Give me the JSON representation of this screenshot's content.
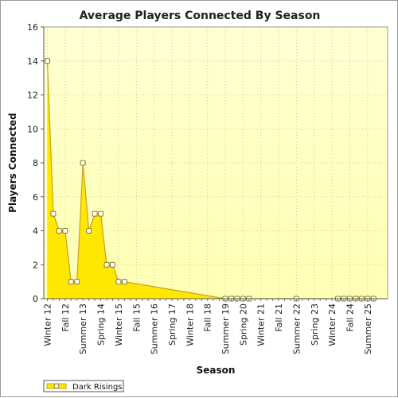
{
  "chart_data": {
    "type": "area",
    "title": "Average Players Connected By Season",
    "xlabel": "Season",
    "ylabel": "Players Connected",
    "ylim": [
      0,
      16
    ],
    "yticks": [
      0,
      2,
      4,
      6,
      8,
      10,
      12,
      14,
      16
    ],
    "grid": true,
    "legend_position": "bottom-left",
    "labeled_ticks": [
      "Winter 12",
      "Fall 12",
      "Summer 13",
      "Spring 14",
      "Winter 15",
      "Fall 15",
      "Summer 16",
      "Spring 17",
      "Winter 18",
      "Fall 18",
      "Summer 19",
      "Spring 20",
      "Winter 21",
      "Fall 21",
      "Summer 22",
      "Spring 23",
      "Winter 24",
      "Fall 24",
      "Summer 25"
    ],
    "categories": [
      "Winter 12",
      "Spring 12",
      "Summer 12",
      "Fall 12",
      "Winter 13",
      "Spring 13",
      "Summer 13",
      "Fall 13",
      "Winter 14",
      "Spring 14",
      "Summer 14",
      "Fall 14",
      "Winter 15",
      "Spring 15",
      "Summer 15",
      "Fall 15",
      "Winter 16",
      "Spring 16",
      "Summer 16",
      "Fall 16",
      "Winter 17",
      "Spring 17",
      "Summer 17",
      "Fall 17",
      "Winter 18",
      "Spring 18",
      "Summer 18",
      "Fall 18",
      "Winter 19",
      "Spring 19",
      "Summer 19",
      "Fall 19",
      "Winter 20",
      "Spring 20",
      "Summer 20",
      "Fall 20",
      "Winter 21",
      "Spring 21",
      "Summer 21",
      "Fall 21",
      "Winter 22",
      "Spring 22",
      "Summer 22",
      "Fall 22",
      "Winter 23",
      "Spring 23",
      "Summer 23",
      "Fall 23",
      "Winter 24",
      "Spring 24",
      "Summer 24",
      "Fall 24",
      "Winter 25",
      "Spring 25",
      "Summer 25",
      "Fall 25"
    ],
    "series": [
      {
        "name": "Dark Risings",
        "color": "#ffe800",
        "line_color": "#c8a020",
        "values": [
          14,
          5,
          4,
          4,
          1,
          1,
          8,
          4,
          5,
          5,
          2,
          2,
          1,
          1,
          null,
          null,
          null,
          null,
          null,
          null,
          null,
          null,
          null,
          null,
          null,
          null,
          null,
          null,
          null,
          null,
          0,
          0,
          0,
          0,
          0,
          null,
          null,
          null,
          null,
          null,
          null,
          null,
          0,
          null,
          null,
          null,
          null,
          null,
          null,
          0,
          0,
          0,
          0,
          0,
          0,
          0
        ]
      }
    ],
    "colors": {
      "plot_background": "#ffffc8",
      "area_fill": "#ffe800",
      "line": "#c8a020",
      "marker_fill": "#ffffff",
      "grid": "#c8c8a0"
    }
  }
}
